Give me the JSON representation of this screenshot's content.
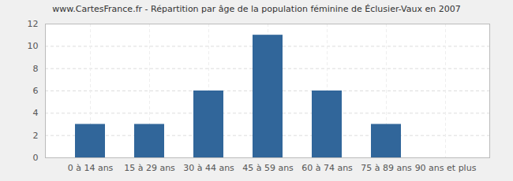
{
  "chart_data": {
    "type": "bar",
    "title": "www.CartesFrance.fr - Répartition par âge de la population féminine de Éclusier-Vaux en 2007",
    "categories": [
      "0 à 14 ans",
      "15 à 29 ans",
      "30 à 44 ans",
      "45 à 59 ans",
      "60 à 74 ans",
      "75 à 89 ans",
      "90 ans et plus"
    ],
    "values": [
      3,
      3,
      6,
      11,
      6,
      3,
      0
    ],
    "color": "#31669a",
    "ylim": [
      0,
      12
    ],
    "yticks": [
      0,
      2,
      4,
      6,
      8,
      10,
      12
    ],
    "grid": true
  }
}
